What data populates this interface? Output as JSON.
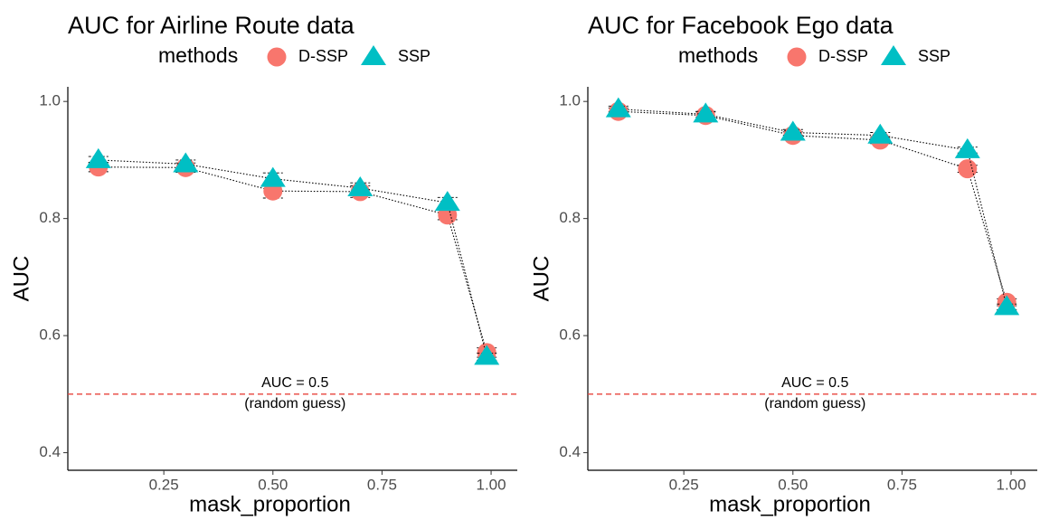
{
  "legend": {
    "title": "methods",
    "entries": [
      {
        "name": "D-SSP",
        "shape": "circle",
        "color": "#F8766D"
      },
      {
        "name": "SSP",
        "shape": "triangle",
        "color": "#00BFC4"
      }
    ]
  },
  "chart_data": [
    {
      "type": "line",
      "title": "AUC for Airline Route data",
      "xlabel": "mask_proportion",
      "ylabel": "AUC",
      "xlim": [
        0.03,
        1.06
      ],
      "ylim": [
        0.37,
        1.025
      ],
      "x_ticks": [
        0.25,
        0.5,
        0.75,
        1.0
      ],
      "x_tick_labels": [
        "0.25",
        "0.50",
        "0.75",
        "1.00"
      ],
      "y_ticks": [
        0.4,
        0.6,
        0.8,
        1.0
      ],
      "y_tick_labels": [
        "0.4",
        "0.6",
        "0.8",
        "1.0"
      ],
      "reference_line": {
        "y": 0.5,
        "style": "dashed",
        "color": "#E8433C",
        "label_line1": "AUC = 0.5",
        "label_line2": "(random guess)"
      },
      "x": [
        0.1,
        0.3,
        0.5,
        0.7,
        0.9,
        0.99
      ],
      "series": [
        {
          "name": "D-SSP",
          "values": [
            0.888,
            0.887,
            0.847,
            0.846,
            0.806,
            0.571
          ],
          "error": [
            0.008,
            0.008,
            0.012,
            0.01,
            0.008,
            0.008
          ]
        },
        {
          "name": "SSP",
          "values": [
            0.9,
            0.893,
            0.868,
            0.852,
            0.827,
            0.564
          ],
          "error": [
            0.006,
            0.007,
            0.01,
            0.009,
            0.009,
            0.006
          ]
        }
      ],
      "grid": false,
      "legend_position": "top"
    },
    {
      "type": "line",
      "title": "AUC for Facebook Ego data",
      "xlabel": "mask_proportion",
      "ylabel": "AUC",
      "xlim": [
        0.03,
        1.06
      ],
      "ylim": [
        0.37,
        1.025
      ],
      "x_ticks": [
        0.25,
        0.5,
        0.75,
        1.0
      ],
      "x_tick_labels": [
        "0.25",
        "0.50",
        "0.75",
        "1.00"
      ],
      "y_ticks": [
        0.4,
        0.6,
        0.8,
        1.0
      ],
      "y_tick_labels": [
        "0.4",
        "0.6",
        "0.8",
        "1.0"
      ],
      "reference_line": {
        "y": 0.5,
        "style": "dashed",
        "color": "#E8433C",
        "label_line1": "AUC = 0.5",
        "label_line2": "(random guess)"
      },
      "x": [
        0.1,
        0.3,
        0.5,
        0.7,
        0.9,
        0.99
      ],
      "series": [
        {
          "name": "D-SSP",
          "values": [
            0.983,
            0.976,
            0.942,
            0.934,
            0.885,
            0.657
          ],
          "error": [
            0.006,
            0.006,
            0.006,
            0.006,
            0.006,
            0.006
          ]
        },
        {
          "name": "SSP",
          "values": [
            0.987,
            0.978,
            0.947,
            0.942,
            0.917,
            0.649
          ],
          "error": [
            0.005,
            0.005,
            0.005,
            0.005,
            0.005,
            0.005
          ]
        }
      ],
      "grid": false,
      "legend_position": "top"
    }
  ]
}
